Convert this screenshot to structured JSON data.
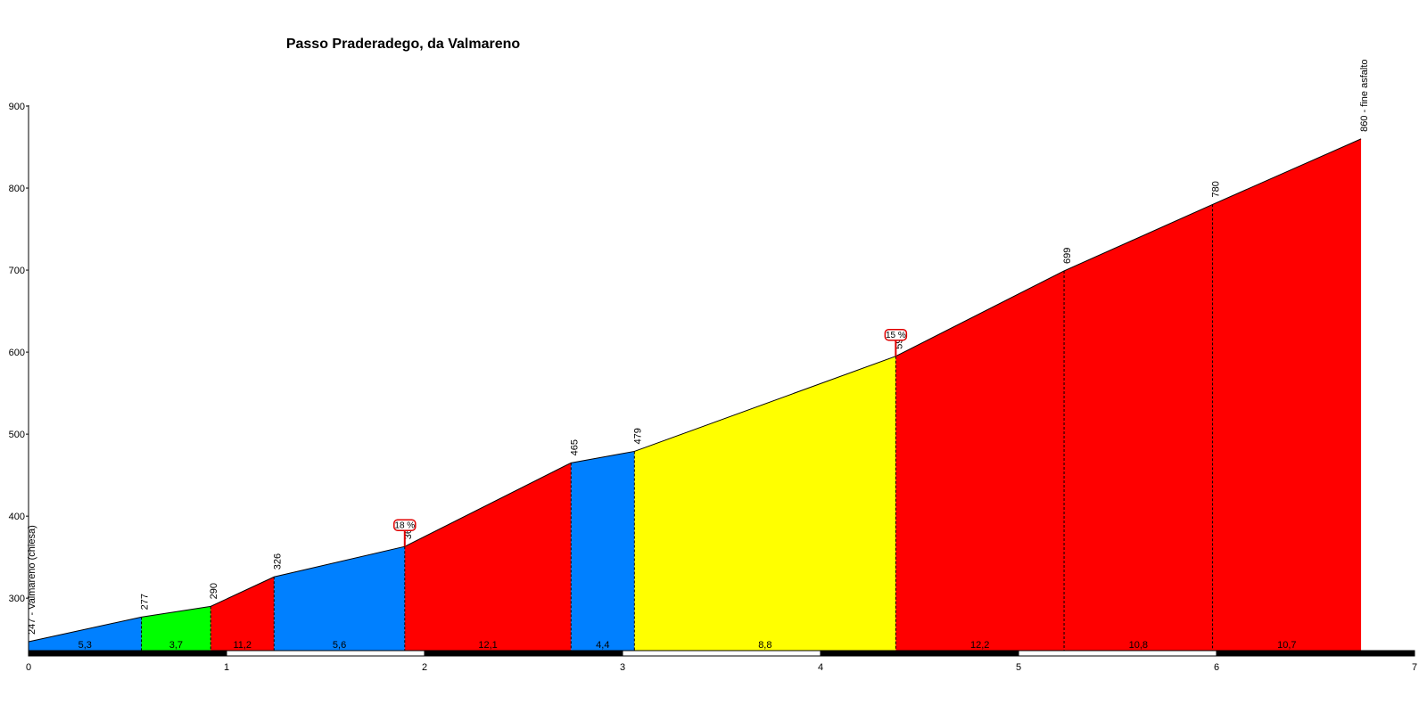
{
  "chart_data": {
    "type": "area",
    "title": "Passo Praderadego, da Valmareno",
    "xlabel": "",
    "ylabel": "",
    "xlim": [
      0,
      7
    ],
    "ylim": [
      235,
      900
    ],
    "x_ticks": [
      "0",
      "1",
      "2",
      "3",
      "4",
      "5",
      "6",
      "7"
    ],
    "y_ticks": [
      "300",
      "400",
      "500",
      "600",
      "700",
      "800",
      "900"
    ],
    "grid": false,
    "points": [
      {
        "x": 0,
        "y": 247,
        "label": "247 - Valmareno (chiesa)"
      },
      {
        "x": 0.57,
        "y": 277,
        "label": "277"
      },
      {
        "x": 0.92,
        "y": 290,
        "label": "290"
      },
      {
        "x": 1.24,
        "y": 326,
        "label": "326"
      },
      {
        "x": 1.9,
        "y": 363,
        "label": "363"
      },
      {
        "x": 2.74,
        "y": 465,
        "label": "465"
      },
      {
        "x": 3.06,
        "y": 479,
        "label": "479"
      },
      {
        "x": 4.38,
        "y": 595,
        "label": "595"
      },
      {
        "x": 5.23,
        "y": 699,
        "label": "699"
      },
      {
        "x": 5.98,
        "y": 780,
        "label": "780"
      },
      {
        "x": 6.73,
        "y": 860,
        "label": "860 - fine asfalto"
      }
    ],
    "segments": [
      {
        "gradient": "5,3",
        "color": "#0080ff"
      },
      {
        "gradient": "3,7",
        "color": "#00ff00"
      },
      {
        "gradient": "11,2",
        "color": "#ff0000"
      },
      {
        "gradient": "5,6",
        "color": "#0080ff"
      },
      {
        "gradient": "12,1",
        "color": "#ff0000"
      },
      {
        "gradient": "4,4",
        "color": "#0080ff"
      },
      {
        "gradient": "8,8",
        "color": "#ffff00"
      },
      {
        "gradient": "12,2",
        "color": "#ff0000"
      },
      {
        "gradient": "10,8",
        "color": "#ff0000"
      },
      {
        "gradient": "10,7",
        "color": "#ff0000"
      }
    ],
    "max_gradients": [
      {
        "x": 1.9,
        "y": 363,
        "label": "18 %"
      },
      {
        "x": 4.38,
        "y": 595,
        "label": "15 %"
      }
    ]
  }
}
